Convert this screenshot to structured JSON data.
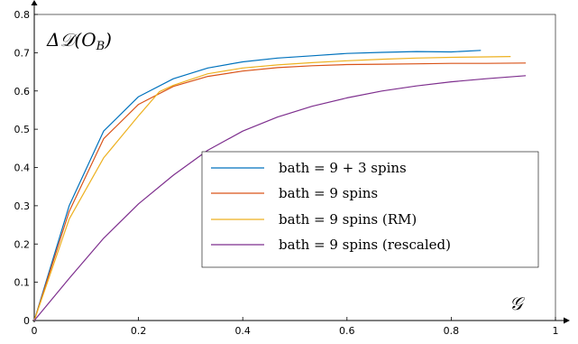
{
  "chart_data": {
    "type": "line",
    "title": "",
    "xlabel": "𝒢",
    "ylabel": "ΔD(O_B)",
    "ylabel_display": "Δ𝒟(O",
    "ylabel_subscript": "B",
    "ylabel_close": ")",
    "xlim": [
      0,
      1
    ],
    "ylim": [
      0,
      0.8
    ],
    "xticks": [
      "0",
      "0.2",
      "0.4",
      "0.6",
      "0.8",
      "1"
    ],
    "yticks": [
      "0",
      "0.1",
      "0.2",
      "0.3",
      "0.4",
      "0.5",
      "0.6",
      "0.7",
      "0.8"
    ],
    "xtick_values": [
      0,
      0.2,
      0.4,
      0.6,
      0.8,
      1
    ],
    "ytick_values": [
      0,
      0.1,
      0.2,
      0.3,
      0.4,
      0.5,
      0.6,
      0.7,
      0.8
    ],
    "grid": false,
    "legend_position": "center-right",
    "series": [
      {
        "name": "bath = 9 + 3 spins",
        "color": "#0072bd",
        "x": [
          0,
          0.067,
          0.133,
          0.2,
          0.267,
          0.333,
          0.4,
          0.467,
          0.533,
          0.6,
          0.667,
          0.733,
          0.8,
          0.857
        ],
        "y": [
          0,
          0.3,
          0.495,
          0.585,
          0.632,
          0.66,
          0.676,
          0.686,
          0.692,
          0.698,
          0.701,
          0.703,
          0.702,
          0.706
        ]
      },
      {
        "name": "bath = 9 spins",
        "color": "#d95319",
        "x": [
          0,
          0.067,
          0.133,
          0.2,
          0.267,
          0.333,
          0.4,
          0.467,
          0.533,
          0.6,
          0.667,
          0.733,
          0.8,
          0.867,
          0.943
        ],
        "y": [
          0,
          0.285,
          0.475,
          0.565,
          0.612,
          0.638,
          0.652,
          0.661,
          0.666,
          0.669,
          0.67,
          0.671,
          0.672,
          0.672,
          0.673
        ]
      },
      {
        "name": "bath = 9 spins (RM)",
        "color": "#edb120",
        "x": [
          0,
          0.067,
          0.133,
          0.2,
          0.24,
          0.267,
          0.333,
          0.4,
          0.467,
          0.533,
          0.6,
          0.667,
          0.733,
          0.8,
          0.867,
          0.914
        ],
        "y": [
          0,
          0.265,
          0.425,
          0.535,
          0.598,
          0.615,
          0.645,
          0.66,
          0.668,
          0.674,
          0.679,
          0.683,
          0.686,
          0.688,
          0.689,
          0.69
        ]
      },
      {
        "name": "bath = 9 spins (rescaled)",
        "color": "#7e2f8e",
        "x": [
          0,
          0.067,
          0.133,
          0.2,
          0.267,
          0.333,
          0.4,
          0.467,
          0.533,
          0.6,
          0.667,
          0.733,
          0.8,
          0.867,
          0.943
        ],
        "y": [
          0,
          0.11,
          0.215,
          0.305,
          0.38,
          0.445,
          0.495,
          0.532,
          0.56,
          0.582,
          0.6,
          0.613,
          0.624,
          0.632,
          0.64
        ]
      }
    ]
  }
}
